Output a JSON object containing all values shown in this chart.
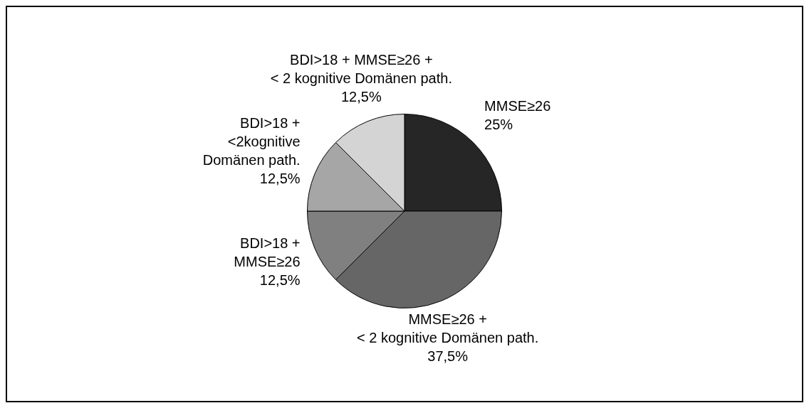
{
  "chart_data": {
    "type": "pie",
    "categories": [
      "MMSE≥26",
      "MMSE≥26 +\n< 2 kognitive Domänen path.",
      "BDI>18 +\nMMSE≥26",
      "BDI>18 +\n<2kognitive\nDomänen path.",
      "BDI>18 + MMSE≥26 +\n< 2 kognitive Domänen path."
    ],
    "values": [
      25,
      37.5,
      12.5,
      12.5,
      12.5
    ],
    "value_labels": [
      "25%",
      "37,5%",
      "12,5%",
      "12,5%",
      "12,5%"
    ],
    "colors": [
      "#262626",
      "#666666",
      "#808080",
      "#a6a6a6",
      "#d4d4d4"
    ],
    "legend": false
  }
}
